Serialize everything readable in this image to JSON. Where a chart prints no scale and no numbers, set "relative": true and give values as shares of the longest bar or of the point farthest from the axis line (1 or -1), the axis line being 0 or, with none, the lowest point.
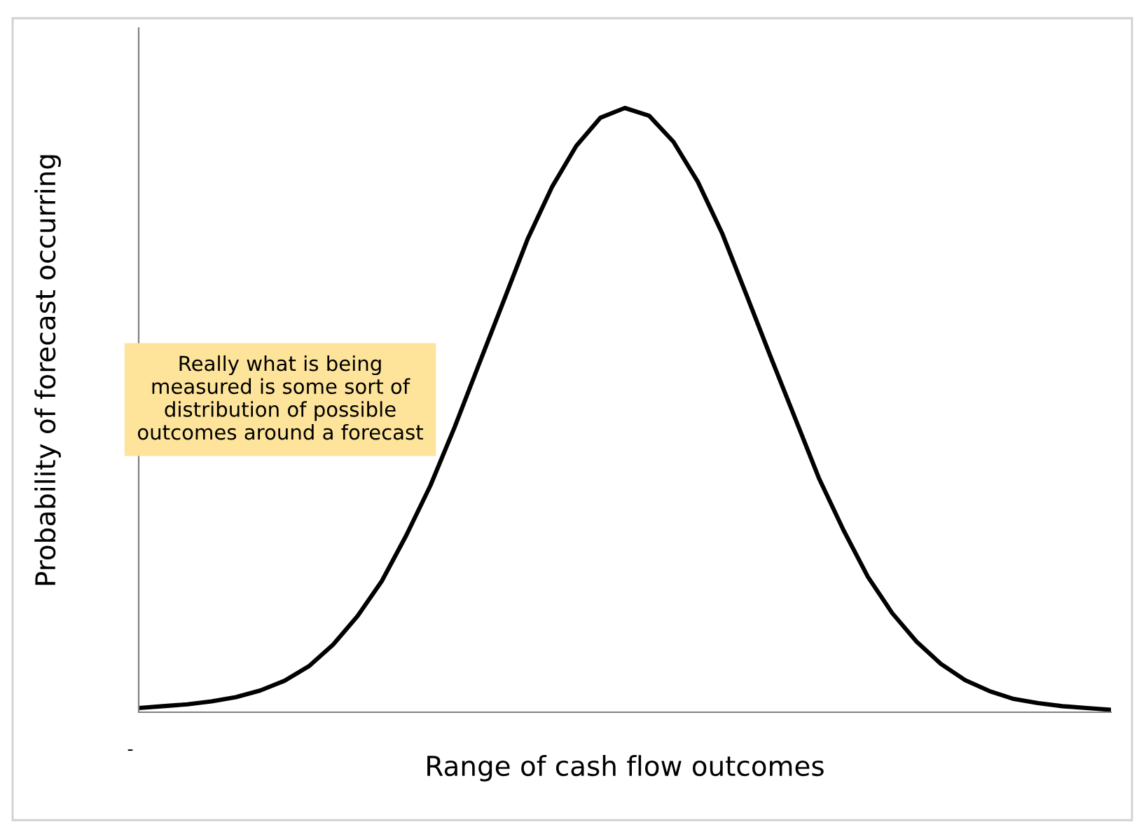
{
  "chart_data": {
    "type": "line",
    "relative": true,
    "xlabel": "Range of cash flow outcomes",
    "ylabel": "Probability of forecast occurring",
    "categories": [
      null,
      null,
      null,
      null,
      null,
      null,
      null,
      null,
      null,
      null,
      null,
      null,
      null,
      null,
      null,
      null,
      null,
      null,
      null,
      null,
      null,
      null,
      null,
      null,
      null,
      null,
      null,
      null,
      null,
      null,
      null,
      null,
      null,
      null,
      null,
      null,
      null,
      null,
      null,
      null,
      null
    ],
    "series": [
      {
        "color": "#000000",
        "values": [
          0.007,
          0.01,
          0.013,
          0.018,
          0.025,
          0.036,
          0.052,
          0.076,
          0.112,
          0.159,
          0.217,
          0.292,
          0.375,
          0.472,
          0.576,
          0.679,
          0.783,
          0.869,
          0.937,
          0.984,
          1.0,
          0.987,
          0.944,
          0.878,
          0.793,
          0.691,
          0.588,
          0.487,
          0.386,
          0.301,
          0.224,
          0.164,
          0.117,
          0.08,
          0.053,
          0.035,
          0.022,
          0.015,
          0.01,
          0.007,
          0.004
        ]
      }
    ],
    "annotations": [
      "Really what is being\nmeasured is some sort of\ndistribution of possible\noutcomes around a forecast",
      "-"
    ]
  }
}
